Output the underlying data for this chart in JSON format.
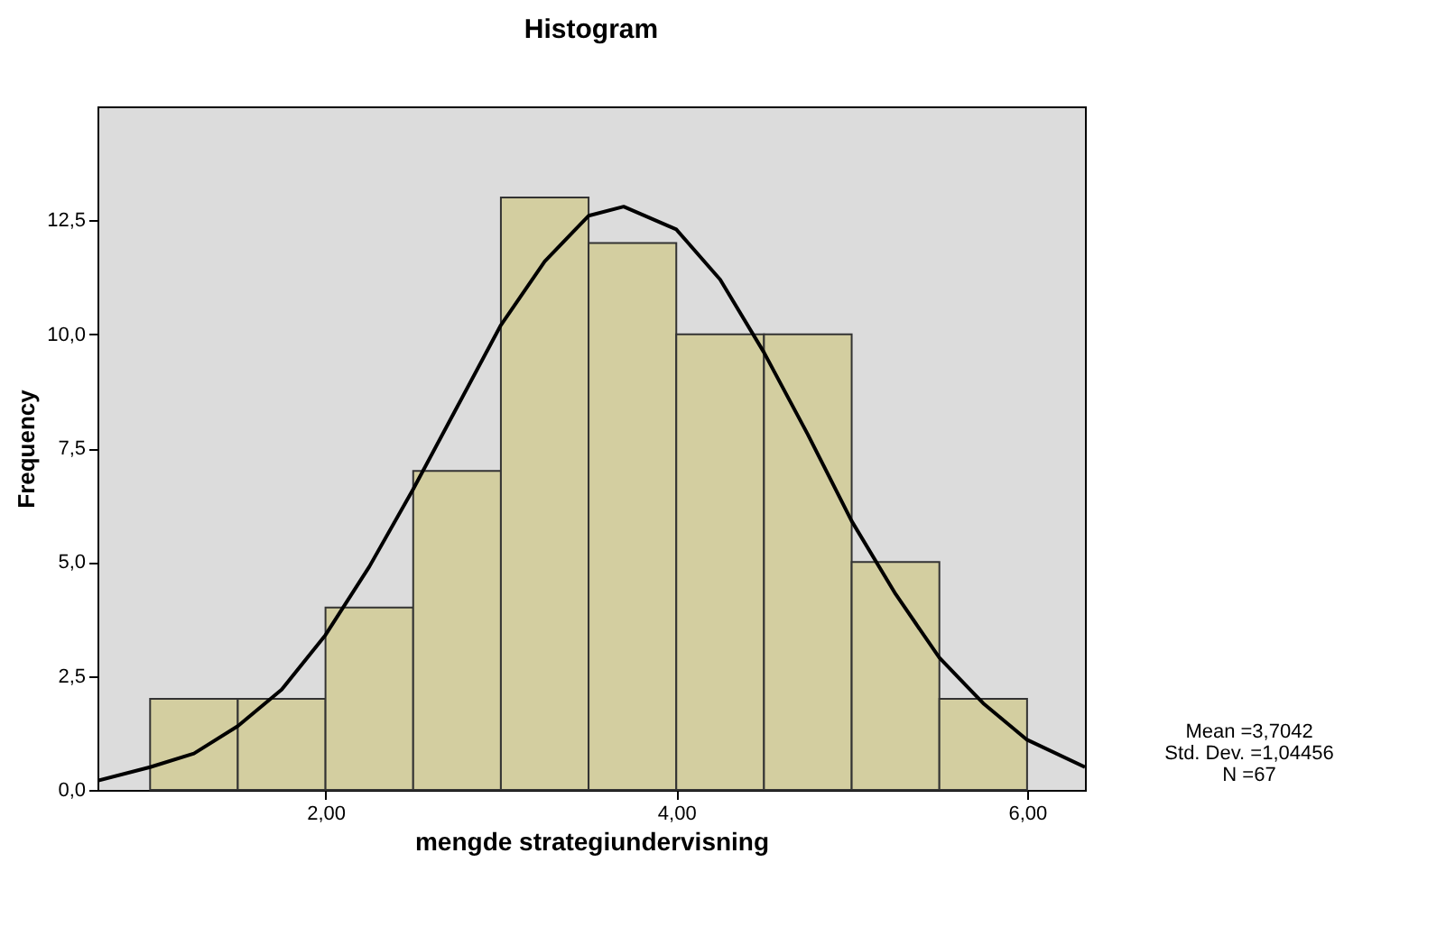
{
  "chart_data": {
    "type": "histogram",
    "title": "Histogram",
    "xlabel": "mengde strategiundervisning",
    "ylabel": "Frequency",
    "bins": [
      1.0,
      1.5,
      2.0,
      2.5,
      3.0,
      3.5,
      4.0,
      4.5,
      5.0,
      5.5,
      6.0
    ],
    "values": [
      2,
      2,
      4,
      7,
      13,
      12,
      10,
      10,
      5,
      2
    ],
    "color": "#d3cea0",
    "series": [
      {
        "type": "line",
        "color": "#000000",
        "x": [
          0.7,
          1.0,
          1.25,
          1.5,
          1.75,
          2.0,
          2.25,
          2.5,
          2.75,
          3.0,
          3.25,
          3.5,
          3.7,
          4.0,
          4.25,
          4.5,
          4.75,
          5.0,
          5.25,
          5.5,
          5.75,
          6.0,
          6.33
        ],
        "values": [
          0.2,
          0.5,
          0.8,
          1.4,
          2.2,
          3.4,
          4.9,
          6.6,
          8.4,
          10.2,
          11.6,
          12.6,
          12.8,
          12.3,
          11.2,
          9.6,
          7.8,
          5.9,
          4.3,
          2.9,
          1.9,
          1.1,
          0.5
        ]
      }
    ],
    "xlim": [
      0.7,
      6.33
    ],
    "xticks": [
      {
        "value": 2,
        "label": "2,00"
      },
      {
        "value": 4,
        "label": "4,00"
      },
      {
        "value": 6,
        "label": "6,00"
      }
    ],
    "ylim": [
      0,
      15
    ],
    "yticks": [
      {
        "value": 0,
        "label": "0,0"
      },
      {
        "value": 2.5,
        "label": "2,5"
      },
      {
        "value": 5,
        "label": "5,0"
      },
      {
        "value": 7.5,
        "label": "7,5"
      },
      {
        "value": 10,
        "label": "10,0"
      },
      {
        "value": 12.5,
        "label": "12,5"
      }
    ],
    "grid": false,
    "annotations": [
      "Mean =3,7042",
      "Std. Dev. =1,04456",
      "N =67"
    ]
  }
}
